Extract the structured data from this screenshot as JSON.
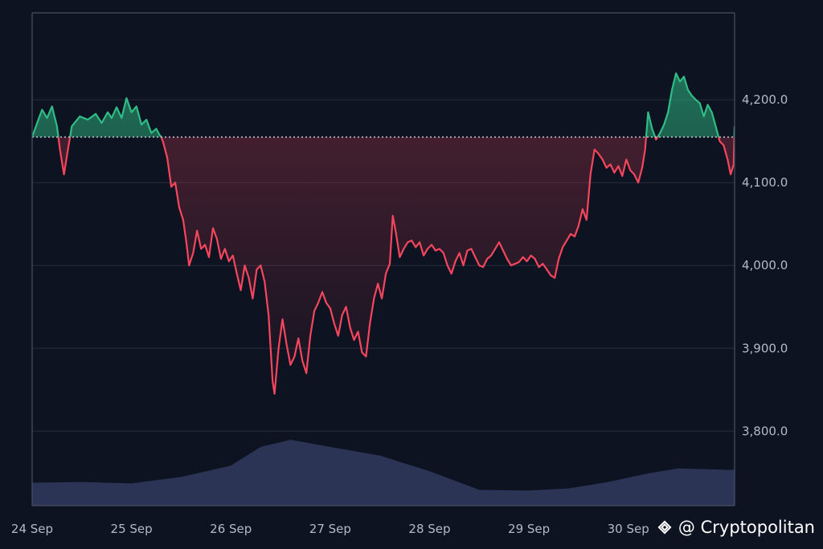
{
  "chart_data": {
    "type": "area",
    "x_ticks": [
      "24 Sep",
      "25 Sep",
      "26 Sep",
      "27 Sep",
      "28 Sep",
      "29 Sep",
      "30 Sep"
    ],
    "y_ticks": [
      "4,200.0",
      "4,100.0",
      "4,000.0",
      "3,900.0",
      "3,800.0"
    ],
    "y_tick_values": [
      4200,
      4100,
      4000,
      3900,
      3800
    ],
    "ylim": [
      3710,
      4305
    ],
    "xlim": [
      0,
      7.07
    ],
    "reference_price": 4155,
    "price_series": [
      [
        0.0,
        4155
      ],
      [
        0.05,
        4172
      ],
      [
        0.1,
        4188
      ],
      [
        0.15,
        4178
      ],
      [
        0.2,
        4192
      ],
      [
        0.25,
        4168
      ],
      [
        0.28,
        4140
      ],
      [
        0.32,
        4110
      ],
      [
        0.36,
        4140
      ],
      [
        0.4,
        4168
      ],
      [
        0.48,
        4180
      ],
      [
        0.56,
        4176
      ],
      [
        0.64,
        4183
      ],
      [
        0.7,
        4172
      ],
      [
        0.76,
        4185
      ],
      [
        0.8,
        4178
      ],
      [
        0.85,
        4191
      ],
      [
        0.9,
        4178
      ],
      [
        0.95,
        4202
      ],
      [
        1.0,
        4185
      ],
      [
        1.05,
        4192
      ],
      [
        1.1,
        4170
      ],
      [
        1.15,
        4176
      ],
      [
        1.2,
        4160
      ],
      [
        1.25,
        4165
      ],
      [
        1.28,
        4158
      ],
      [
        1.3,
        4155
      ],
      [
        1.32,
        4148
      ],
      [
        1.36,
        4130
      ],
      [
        1.4,
        4095
      ],
      [
        1.44,
        4100
      ],
      [
        1.48,
        4070
      ],
      [
        1.52,
        4055
      ],
      [
        1.55,
        4030
      ],
      [
        1.58,
        4000
      ],
      [
        1.62,
        4015
      ],
      [
        1.66,
        4042
      ],
      [
        1.7,
        4020
      ],
      [
        1.74,
        4025
      ],
      [
        1.78,
        4010
      ],
      [
        1.82,
        4045
      ],
      [
        1.86,
        4032
      ],
      [
        1.9,
        4008
      ],
      [
        1.94,
        4020
      ],
      [
        1.98,
        4005
      ],
      [
        2.02,
        4012
      ],
      [
        2.06,
        3990
      ],
      [
        2.1,
        3970
      ],
      [
        2.14,
        4000
      ],
      [
        2.18,
        3985
      ],
      [
        2.22,
        3960
      ],
      [
        2.26,
        3995
      ],
      [
        2.3,
        4000
      ],
      [
        2.34,
        3980
      ],
      [
        2.38,
        3940
      ],
      [
        2.42,
        3860
      ],
      [
        2.44,
        3845
      ],
      [
        2.48,
        3900
      ],
      [
        2.52,
        3935
      ],
      [
        2.56,
        3905
      ],
      [
        2.6,
        3880
      ],
      [
        2.64,
        3890
      ],
      [
        2.68,
        3912
      ],
      [
        2.72,
        3885
      ],
      [
        2.76,
        3870
      ],
      [
        2.8,
        3915
      ],
      [
        2.84,
        3945
      ],
      [
        2.88,
        3955
      ],
      [
        2.92,
        3968
      ],
      [
        2.96,
        3955
      ],
      [
        3.0,
        3948
      ],
      [
        3.04,
        3930
      ],
      [
        3.08,
        3915
      ],
      [
        3.12,
        3940
      ],
      [
        3.16,
        3950
      ],
      [
        3.2,
        3925
      ],
      [
        3.24,
        3910
      ],
      [
        3.28,
        3920
      ],
      [
        3.32,
        3895
      ],
      [
        3.36,
        3890
      ],
      [
        3.4,
        3930
      ],
      [
        3.44,
        3960
      ],
      [
        3.48,
        3978
      ],
      [
        3.52,
        3960
      ],
      [
        3.56,
        3990
      ],
      [
        3.6,
        4002
      ],
      [
        3.63,
        4060
      ],
      [
        3.66,
        4040
      ],
      [
        3.7,
        4010
      ],
      [
        3.74,
        4020
      ],
      [
        3.78,
        4028
      ],
      [
        3.82,
        4030
      ],
      [
        3.86,
        4022
      ],
      [
        3.9,
        4028
      ],
      [
        3.94,
        4012
      ],
      [
        3.98,
        4020
      ],
      [
        4.02,
        4025
      ],
      [
        4.06,
        4018
      ],
      [
        4.1,
        4020
      ],
      [
        4.14,
        4015
      ],
      [
        4.18,
        4000
      ],
      [
        4.22,
        3990
      ],
      [
        4.26,
        4005
      ],
      [
        4.3,
        4015
      ],
      [
        4.34,
        4000
      ],
      [
        4.38,
        4018
      ],
      [
        4.42,
        4020
      ],
      [
        4.46,
        4010
      ],
      [
        4.5,
        4000
      ],
      [
        4.54,
        3998
      ],
      [
        4.58,
        4008
      ],
      [
        4.62,
        4012
      ],
      [
        4.66,
        4020
      ],
      [
        4.7,
        4028
      ],
      [
        4.74,
        4018
      ],
      [
        4.78,
        4008
      ],
      [
        4.82,
        4000
      ],
      [
        4.86,
        4002
      ],
      [
        4.9,
        4004
      ],
      [
        4.94,
        4010
      ],
      [
        4.98,
        4005
      ],
      [
        5.02,
        4012
      ],
      [
        5.06,
        4008
      ],
      [
        5.1,
        3998
      ],
      [
        5.14,
        4002
      ],
      [
        5.18,
        3995
      ],
      [
        5.22,
        3988
      ],
      [
        5.26,
        3985
      ],
      [
        5.3,
        4008
      ],
      [
        5.34,
        4022
      ],
      [
        5.38,
        4030
      ],
      [
        5.42,
        4038
      ],
      [
        5.46,
        4035
      ],
      [
        5.5,
        4048
      ],
      [
        5.54,
        4068
      ],
      [
        5.58,
        4055
      ],
      [
        5.62,
        4110
      ],
      [
        5.66,
        4140
      ],
      [
        5.7,
        4135
      ],
      [
        5.74,
        4128
      ],
      [
        5.78,
        4118
      ],
      [
        5.82,
        4122
      ],
      [
        5.86,
        4112
      ],
      [
        5.9,
        4120
      ],
      [
        5.94,
        4108
      ],
      [
        5.98,
        4128
      ],
      [
        6.02,
        4115
      ],
      [
        6.06,
        4110
      ],
      [
        6.1,
        4100
      ],
      [
        6.14,
        4118
      ],
      [
        6.17,
        4140
      ],
      [
        6.2,
        4185
      ],
      [
        6.24,
        4165
      ],
      [
        6.28,
        4152
      ],
      [
        6.32,
        4160
      ],
      [
        6.36,
        4170
      ],
      [
        6.4,
        4185
      ],
      [
        6.44,
        4212
      ],
      [
        6.48,
        4232
      ],
      [
        6.52,
        4222
      ],
      [
        6.56,
        4228
      ],
      [
        6.6,
        4212
      ],
      [
        6.64,
        4205
      ],
      [
        6.68,
        4200
      ],
      [
        6.72,
        4196
      ],
      [
        6.76,
        4180
      ],
      [
        6.8,
        4194
      ],
      [
        6.84,
        4185
      ],
      [
        6.88,
        4168
      ],
      [
        6.92,
        4150
      ],
      [
        6.96,
        4145
      ],
      [
        7.0,
        4128
      ],
      [
        7.03,
        4110
      ],
      [
        7.06,
        4122
      ],
      [
        7.07,
        4168
      ]
    ],
    "volume_series": [
      [
        0.0,
        0.32
      ],
      [
        0.5,
        0.33
      ],
      [
        1.0,
        0.31
      ],
      [
        1.5,
        0.4
      ],
      [
        2.0,
        0.56
      ],
      [
        2.3,
        0.82
      ],
      [
        2.6,
        0.92
      ],
      [
        3.0,
        0.82
      ],
      [
        3.5,
        0.7
      ],
      [
        4.0,
        0.48
      ],
      [
        4.5,
        0.22
      ],
      [
        5.0,
        0.21
      ],
      [
        5.4,
        0.24
      ],
      [
        5.8,
        0.33
      ],
      [
        6.2,
        0.45
      ],
      [
        6.5,
        0.52
      ],
      [
        7.0,
        0.5
      ],
      [
        7.07,
        0.5
      ]
    ],
    "grid": true,
    "colors": {
      "up": "#2fbd85",
      "down": "#f6465d",
      "volume": "#2b3454",
      "grid": "#252c3c",
      "reference_line": "#c8ccd6"
    }
  },
  "watermark": {
    "text": "@ Cryptopolitan",
    "logo_icon": "binance-diamond-icon"
  }
}
